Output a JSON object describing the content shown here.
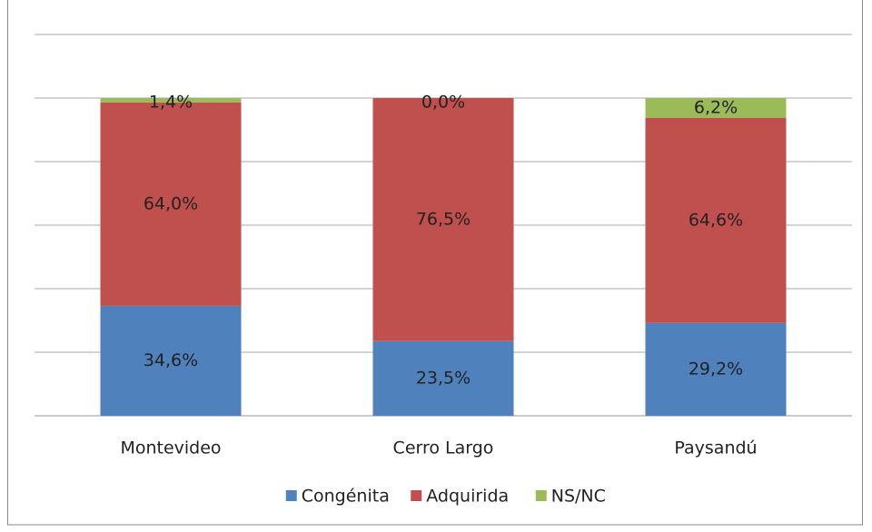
{
  "chart_data": {
    "type": "stacked_bar",
    "categories": [
      "Montevideo",
      "Cerro Largo",
      "Paysandú"
    ],
    "series": [
      {
        "name": "Congénita",
        "color": "#4f81bd",
        "values": [
          34.6,
          23.5,
          29.2
        ],
        "value_labels": [
          "34,6%",
          "23,5%",
          "29,2%"
        ]
      },
      {
        "name": "Adquirida",
        "color": "#c0504d",
        "values": [
          64.0,
          76.5,
          64.6
        ],
        "value_labels": [
          "64,0%",
          "76,5%",
          "64,6%"
        ]
      },
      {
        "name": "NS/NC",
        "color": "#9bbb59",
        "values": [
          1.4,
          0.0,
          6.2
        ],
        "value_labels": [
          "1,4%",
          "0,0%",
          "6,2%"
        ]
      }
    ],
    "ylim": [
      0,
      120
    ],
    "yticks": [
      0,
      20,
      40,
      60,
      80,
      100,
      120
    ],
    "grid": true,
    "legend": "bottom"
  }
}
